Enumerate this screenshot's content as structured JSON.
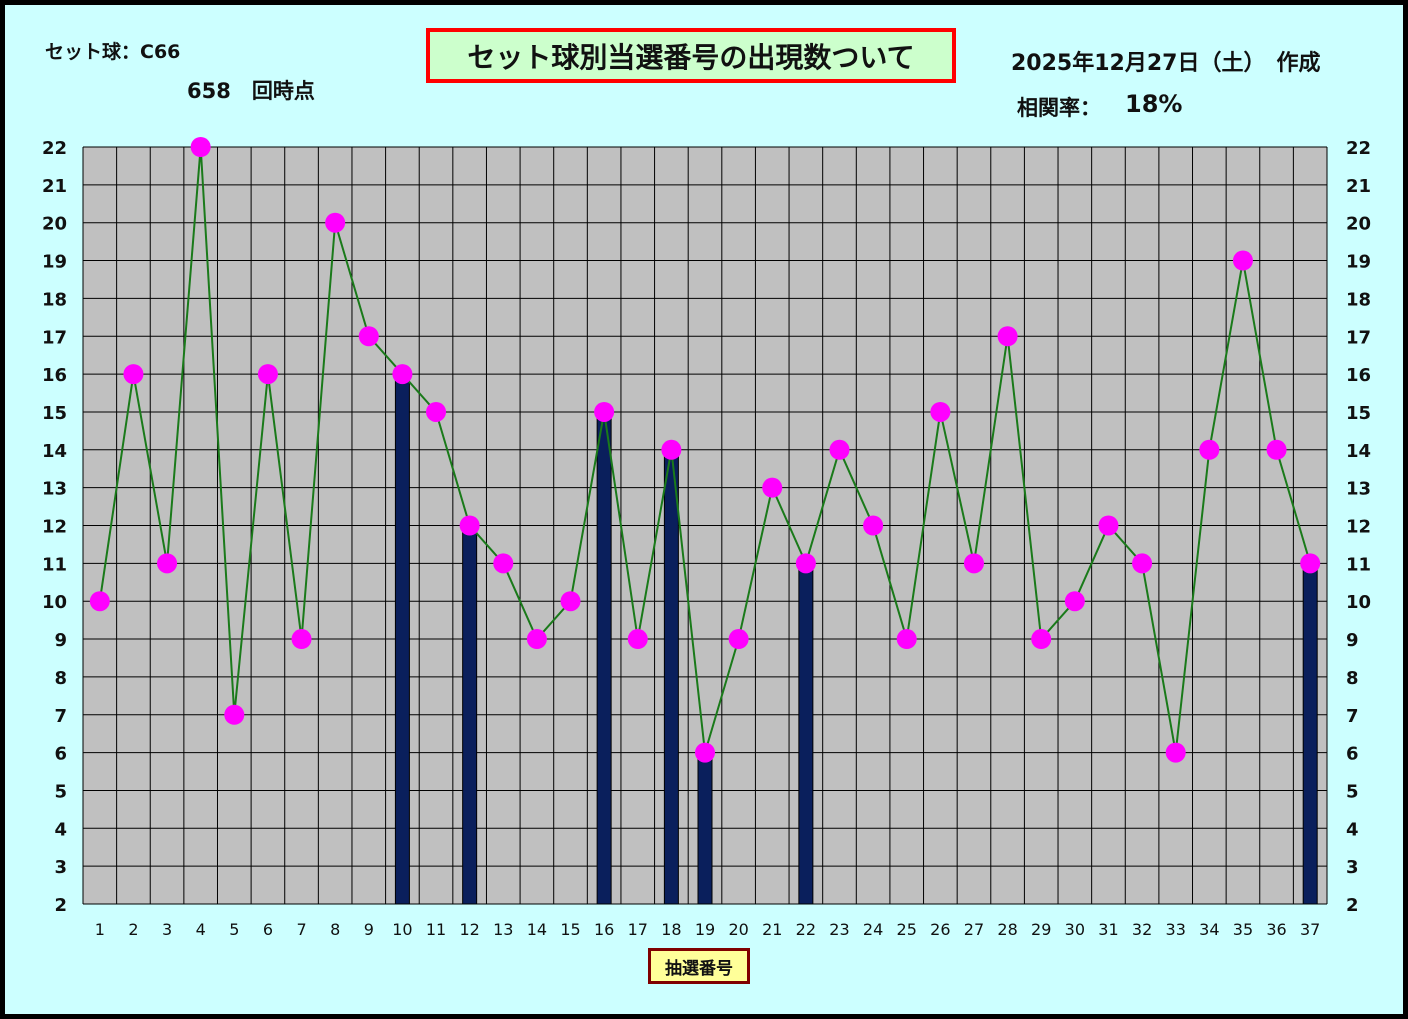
{
  "header": {
    "set_ball": "セット球：C66",
    "draw_count": "658　回時点",
    "title": "セット球別当選番号の出現数ついて",
    "created": "2025年12月27日（土）　作成",
    "corr_label": "相関率：",
    "corr_value": "18%"
  },
  "colors": {
    "frame_background": "#ccffff",
    "plot_background": "#c0c0c0",
    "gridline": "#000000",
    "bar_fill": "#0a1f5c",
    "line": "#1a7a1a",
    "marker": "#ff00ff",
    "title_border": "#ff0000",
    "title_background": "#ccffcc",
    "xlabel_border": "#800000",
    "xlabel_background": "#ffff99"
  },
  "chart_data": {
    "type": "bar",
    "xlabel": "抽選番号",
    "ylabel": "",
    "ylim": [
      2,
      22
    ],
    "yticks": [
      2,
      3,
      4,
      5,
      6,
      7,
      8,
      9,
      10,
      11,
      12,
      13,
      14,
      15,
      16,
      17,
      18,
      19,
      20,
      21,
      22
    ],
    "right_axis_ticks": [
      2,
      3,
      4,
      5,
      6,
      7,
      8,
      9,
      10,
      11,
      12,
      13,
      14,
      15,
      16,
      17,
      18,
      19,
      20,
      21,
      22
    ],
    "categories": [
      "1",
      "2",
      "3",
      "4",
      "5",
      "6",
      "7",
      "8",
      "9",
      "10",
      "11",
      "12",
      "13",
      "14",
      "15",
      "16",
      "17",
      "18",
      "19",
      "20",
      "21",
      "22",
      "23",
      "24",
      "25",
      "26",
      "27",
      "28",
      "29",
      "30",
      "31",
      "32",
      "33",
      "34",
      "35",
      "36",
      "37"
    ],
    "grid": true,
    "legend": "none",
    "series": [
      {
        "type": "line",
        "values": [
          10,
          16,
          11,
          22,
          7,
          16,
          9,
          20,
          17,
          16,
          15,
          12,
          11,
          9,
          10,
          15,
          9,
          14,
          6,
          9,
          13,
          11,
          14,
          12,
          9,
          15,
          11,
          17,
          9,
          10,
          12,
          11,
          6,
          14,
          19,
          14,
          11
        ]
      },
      {
        "type": "bar",
        "values": [
          null,
          null,
          null,
          null,
          null,
          null,
          null,
          null,
          null,
          16,
          null,
          12,
          null,
          null,
          null,
          15,
          null,
          14,
          6,
          null,
          null,
          11,
          null,
          null,
          null,
          null,
          null,
          null,
          null,
          null,
          null,
          null,
          null,
          null,
          null,
          null,
          11
        ]
      }
    ]
  }
}
